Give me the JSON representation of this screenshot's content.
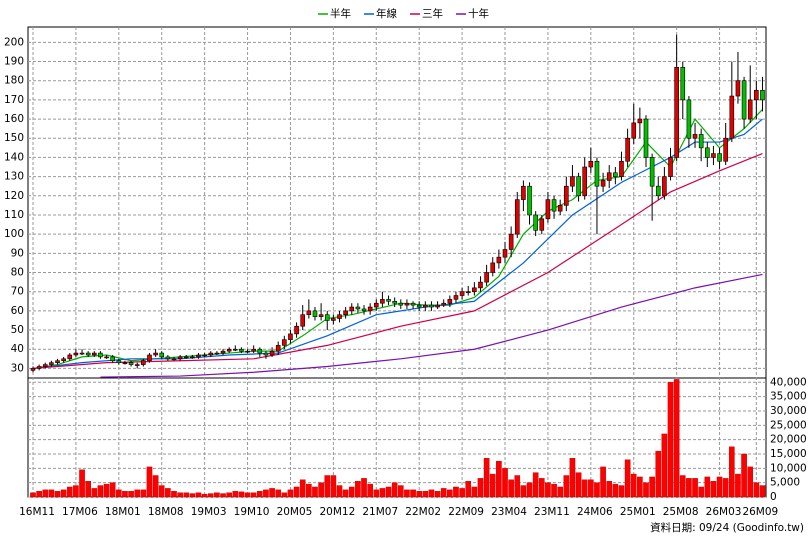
{
  "chart_data": [
    {
      "type": "candlestick",
      "categories": [
        "16M11",
        null,
        null,
        null,
        null,
        null,
        null,
        "17M06",
        null,
        null,
        null,
        null,
        null,
        null,
        "18M01",
        null,
        null,
        null,
        null,
        null,
        null,
        "18M08",
        null,
        null,
        null,
        null,
        null,
        null,
        "19M03",
        null,
        null,
        null,
        null,
        null,
        null,
        "19M10",
        null,
        null,
        null,
        null,
        null,
        null,
        "20M05",
        null,
        null,
        null,
        null,
        null,
        null,
        "20M12",
        null,
        null,
        null,
        null,
        null,
        null,
        "21M07",
        null,
        null,
        null,
        null,
        null,
        null,
        "22M02",
        null,
        null,
        null,
        null,
        null,
        null,
        "22M09",
        null,
        null,
        null,
        null,
        null,
        null,
        "23M04",
        null,
        null,
        null,
        null,
        null,
        null,
        "23M11",
        null,
        null,
        null,
        null,
        null,
        null,
        "24M06",
        null,
        null,
        null,
        null,
        null,
        null,
        "25M01",
        null,
        null,
        null,
        null,
        null,
        null,
        "25M08",
        null,
        null,
        null,
        null,
        null,
        null,
        "26M03",
        null,
        null,
        null,
        null,
        null,
        "26M09",
        null
      ],
      "open": [
        29,
        30,
        31,
        32,
        33,
        34,
        35,
        37,
        38,
        38,
        37,
        38,
        36,
        36,
        34,
        33,
        33,
        32,
        32,
        34,
        37,
        38,
        36,
        35,
        35,
        36,
        36,
        36,
        37,
        37,
        38,
        38,
        39,
        40,
        40,
        39,
        39,
        40,
        38,
        37,
        39,
        42,
        45,
        48,
        52,
        58,
        60,
        57,
        58,
        55,
        56,
        58,
        60,
        62,
        61,
        60,
        62,
        64,
        66,
        65,
        64,
        63,
        64,
        63,
        62,
        63,
        62,
        63,
        64,
        66,
        68,
        70,
        70,
        72,
        75,
        80,
        85,
        88,
        92,
        100,
        118,
        125,
        110,
        102,
        108,
        118,
        112,
        115,
        125,
        130,
        120,
        135,
        138,
        125,
        128,
        132,
        130,
        138,
        150,
        158,
        160,
        140,
        125,
        120,
        130,
        140,
        187,
        170,
        150,
        152,
        145,
        140,
        142,
        138,
        150,
        172,
        180,
        160,
        170,
        175
      ],
      "high": [
        31,
        32,
        33,
        34,
        35,
        36,
        38,
        40,
        40,
        39,
        39,
        39,
        37,
        37,
        35,
        34,
        34,
        33,
        35,
        38,
        40,
        39,
        37,
        36,
        37,
        37,
        37,
        38,
        38,
        39,
        39,
        40,
        41,
        42,
        41,
        40,
        42,
        41,
        39,
        41,
        44,
        47,
        50,
        54,
        63,
        66,
        62,
        64,
        60,
        58,
        60,
        62,
        64,
        64,
        63,
        64,
        66,
        70,
        68,
        67,
        66,
        66,
        65,
        65,
        65,
        65,
        65,
        66,
        68,
        70,
        72,
        73,
        75,
        78,
        84,
        88,
        92,
        96,
        104,
        122,
        128,
        127,
        112,
        110,
        122,
        120,
        118,
        130,
        136,
        132,
        140,
        145,
        140,
        132,
        136,
        135,
        143,
        155,
        168,
        166,
        162,
        142,
        130,
        135,
        145,
        204,
        190,
        172,
        158,
        155,
        148,
        146,
        145,
        158,
        190,
        195,
        182,
        188,
        180,
        182
      ],
      "low": [
        28,
        29,
        30,
        31,
        32,
        33,
        34,
        36,
        37,
        36,
        36,
        35,
        35,
        33,
        32,
        32,
        31,
        30,
        31,
        33,
        36,
        35,
        34,
        34,
        34,
        35,
        35,
        35,
        36,
        36,
        37,
        37,
        38,
        39,
        38,
        38,
        38,
        36,
        35,
        36,
        37,
        40,
        43,
        46,
        50,
        56,
        55,
        55,
        50,
        53,
        54,
        56,
        58,
        59,
        58,
        58,
        60,
        62,
        63,
        62,
        61,
        61,
        61,
        60,
        60,
        60,
        61,
        62,
        62,
        64,
        66,
        68,
        68,
        70,
        73,
        78,
        82,
        85,
        88,
        98,
        112,
        105,
        99,
        100,
        106,
        108,
        110,
        112,
        122,
        117,
        118,
        132,
        100,
        122,
        124,
        126,
        128,
        135,
        147,
        150,
        135,
        107,
        118,
        118,
        128,
        138,
        160,
        145,
        145,
        138,
        135,
        136,
        134,
        136,
        148,
        168,
        155,
        158,
        160,
        164
      ],
      "close": [
        30,
        31,
        32,
        33,
        34,
        35,
        37,
        38,
        38,
        37,
        38,
        36,
        36,
        34,
        33,
        33,
        32,
        32,
        34,
        37,
        38,
        36,
        35,
        35,
        36,
        36,
        36,
        37,
        37,
        38,
        38,
        39,
        40,
        40,
        39,
        39,
        40,
        38,
        37,
        39,
        42,
        45,
        48,
        52,
        58,
        60,
        57,
        58,
        55,
        56,
        58,
        60,
        62,
        61,
        60,
        62,
        64,
        66,
        65,
        64,
        63,
        64,
        63,
        62,
        63,
        62,
        63,
        64,
        66,
        68,
        70,
        70,
        72,
        75,
        80,
        85,
        88,
        92,
        100,
        118,
        125,
        110,
        102,
        108,
        118,
        112,
        115,
        125,
        130,
        120,
        135,
        138,
        125,
        128,
        132,
        130,
        138,
        150,
        158,
        160,
        140,
        125,
        120,
        130,
        140,
        187,
        170,
        150,
        152,
        145,
        140,
        142,
        138,
        150,
        172,
        180,
        160,
        170,
        175,
        170
      ],
      "up_color": "#e00000",
      "down_color": "#00c000",
      "series": [
        {
          "name": "半年",
          "color": "#00b000",
          "x": [
            0,
            4,
            8,
            12,
            16,
            20,
            24,
            28,
            32,
            36,
            40,
            44,
            48,
            52,
            56,
            60,
            64,
            68,
            72,
            76,
            80,
            84,
            88,
            92,
            96,
            100,
            104,
            108,
            112,
            116,
            119
          ],
          "values": [
            30,
            32,
            36,
            37,
            34,
            35,
            36,
            37,
            38,
            39,
            39,
            47,
            56,
            58,
            61,
            64,
            63,
            63,
            67,
            78,
            100,
            112,
            118,
            128,
            130,
            148,
            135,
            160,
            145,
            155,
            165
          ]
        },
        {
          "name": "年線",
          "color": "#0060e0",
          "x": [
            0,
            8,
            16,
            24,
            32,
            40,
            48,
            56,
            64,
            72,
            80,
            88,
            96,
            104,
            108,
            112,
            116,
            119
          ],
          "values": [
            30,
            33,
            35,
            35,
            37,
            38,
            47,
            58,
            62,
            65,
            85,
            110,
            127,
            140,
            148,
            148,
            152,
            160
          ]
        },
        {
          "name": "三年",
          "color": "#d0004a",
          "x": [
            0,
            12,
            24,
            36,
            48,
            60,
            72,
            84,
            96,
            104,
            112,
            119
          ],
          "values": [
            30,
            33,
            34,
            35,
            42,
            52,
            60,
            80,
            105,
            122,
            133,
            142
          ]
        },
        {
          "name": "十年",
          "color": "#7a10b0",
          "x": [
            11,
            24,
            36,
            48,
            60,
            72,
            84,
            96,
            108,
            119
          ],
          "values": [
            25.5,
            26,
            28,
            31,
            35,
            40,
            50,
            62,
            72,
            79
          ]
        }
      ],
      "ylim": [
        25,
        208
      ],
      "yticks": [
        30,
        40,
        50,
        60,
        70,
        80,
        90,
        100,
        110,
        120,
        130,
        140,
        150,
        160,
        170,
        180,
        190,
        200
      ],
      "grid": true
    },
    {
      "type": "bar",
      "color": "#ff0000",
      "values": [
        1500,
        2000,
        2500,
        2500,
        2000,
        2500,
        3500,
        4000,
        9500,
        5500,
        3000,
        4000,
        4500,
        5000,
        2500,
        2000,
        2000,
        2500,
        2500,
        10500,
        7500,
        4000,
        3000,
        2000,
        1500,
        1500,
        1200,
        1500,
        1000,
        1200,
        1500,
        1200,
        1500,
        2000,
        1800,
        1500,
        1500,
        2000,
        2500,
        3000,
        2500,
        1500,
        2500,
        3500,
        6000,
        4500,
        3500,
        5000,
        7500,
        7500,
        4000,
        2500,
        3500,
        5500,
        6500,
        4500,
        2500,
        3000,
        3500,
        5000,
        4000,
        2500,
        2500,
        2000,
        2000,
        2500,
        2000,
        3000,
        2500,
        3500,
        3000,
        5500,
        3500,
        6500,
        13500,
        8000,
        12500,
        10000,
        6000,
        7500,
        4000,
        5000,
        8500,
        6500,
        5000,
        4500,
        3500,
        7500,
        13500,
        8500,
        6000,
        6000,
        5000,
        10500,
        5500,
        4500,
        4000,
        13000,
        8000,
        7000,
        5000,
        7000,
        16000,
        22000,
        40000,
        41000,
        7500,
        6500,
        6500,
        3500,
        7000,
        5500,
        7000,
        6500,
        17500,
        8000,
        15000,
        10500,
        5000,
        4000
      ],
      "ylim": [
        0,
        41500
      ],
      "yticks": [
        0,
        {
          "value": 5000,
          "label": "5,000"
        },
        {
          "value": 10000,
          "label": "10,000"
        },
        {
          "value": 15000,
          "label": "15,000"
        },
        {
          "value": 20000,
          "label": "20,000"
        },
        {
          "value": 25000,
          "label": "25,000"
        },
        {
          "value": 30000,
          "label": "30,000"
        },
        {
          "value": 35000,
          "label": "35,000"
        },
        {
          "value": 40000,
          "label": "40,000"
        }
      ],
      "grid": true
    }
  ],
  "source": "資料日期: 09/24 (Goodinfo.tw)"
}
